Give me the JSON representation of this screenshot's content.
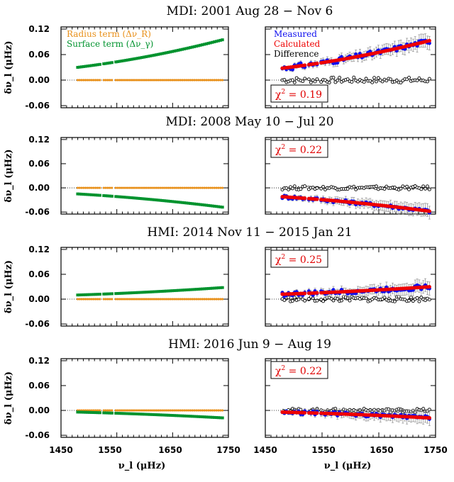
{
  "chart_data": {
    "type": "scatter",
    "xlabel": "ν_l (μHz)",
    "ylabel": "δν_l (μHz)",
    "xlim": [
      1450,
      1750
    ],
    "ylim": [
      -0.065,
      0.125
    ],
    "xticks": [
      "1450",
      "1550",
      "1650",
      "1750"
    ],
    "yticks": [
      "-0.06",
      "0.00",
      "0.06",
      "0.12"
    ],
    "legend_left": [
      {
        "name": "Radius term (Δν_R)",
        "color": "#e8901a"
      },
      {
        "name": "Surface term (Δν_γ)",
        "color": "#00932e"
      }
    ],
    "legend_right": [
      {
        "name": "Measured",
        "color": "#1010ee"
      },
      {
        "name": "Calculated",
        "color": "#ee0000"
      },
      {
        "name": "Difference",
        "color": "#000000"
      }
    ],
    "panels": [
      {
        "title": "MDI: 2001 Aug 28 − Nov 6",
        "chi2": "0.19",
        "chi_pos": "bottom",
        "surface_fit": [
          0.03,
          0.095
        ],
        "radius": 0.0,
        "calc_fit": [
          0.028,
          0.093
        ],
        "diff_offset": 0.0,
        "noise": 0.013,
        "show_legend": true
      },
      {
        "title": "MDI: 2008 May 10 − Jul 20",
        "chi2": "0.22",
        "chi_pos": "top",
        "surface_fit": [
          -0.015,
          -0.048
        ],
        "radius": 0.0,
        "calc_fit": [
          -0.022,
          -0.058
        ],
        "diff_offset": 0.0,
        "noise": 0.009,
        "show_legend": false
      },
      {
        "title": "HMI: 2014 Nov 11 − 2015  Jan 21",
        "chi2": "0.25",
        "chi_pos": "top",
        "surface_fit": [
          0.01,
          0.028
        ],
        "radius": 0.0,
        "calc_fit": [
          0.012,
          0.03
        ],
        "diff_offset": 0.0,
        "noise": 0.012,
        "show_legend": false
      },
      {
        "title": "HMI: 2016 Jun 9 − Aug 19",
        "chi2": "0.22",
        "chi_pos": "top",
        "surface_fit": [
          -0.004,
          -0.018
        ],
        "radius": 0.0,
        "calc_fit": [
          -0.004,
          -0.018
        ],
        "diff_offset": 0.0,
        "noise": 0.009,
        "show_legend": false
      }
    ]
  }
}
